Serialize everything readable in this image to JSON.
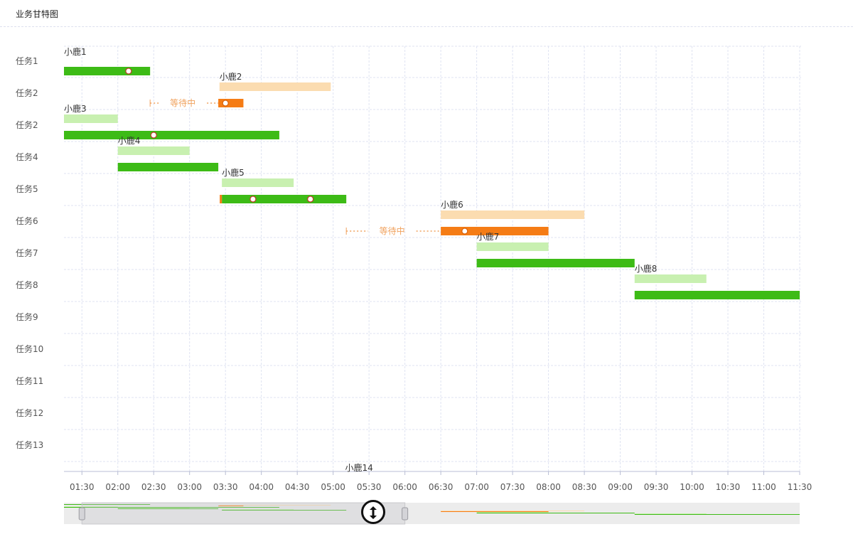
{
  "page": {
    "title": "业务甘特图"
  },
  "chart_data": {
    "type": "gantt",
    "title": "业务甘特图",
    "x_ticks": [
      "01:30",
      "02:00",
      "02:30",
      "03:00",
      "03:30",
      "04:00",
      "04:30",
      "05:00",
      "05:30",
      "06:00",
      "06:30",
      "07:00",
      "07:30",
      "08:00",
      "08:30",
      "09:00",
      "09:30",
      "10:00",
      "10:30",
      "11:00",
      "11:30"
    ],
    "x_range": [
      "01:15",
      "11:30"
    ],
    "rows": [
      "任务1",
      "任务2",
      "任务2",
      "任务4",
      "任务5",
      "任务6",
      "任务7",
      "任务8",
      "任务9",
      "任务10",
      "任务11",
      "任务12",
      "任务13"
    ],
    "grid": true,
    "colors": {
      "done": "#3dbb16",
      "planned": "#c8f0b0",
      "late": "#f57c15",
      "late_planned": "#fbdcb0",
      "waiting": "#f0a25e",
      "grid": "#dfe3f2"
    },
    "tasks": [
      {
        "row": 0,
        "label": "小鹿1",
        "actual": [
          "01:15",
          "02:27"
        ],
        "state": "done",
        "markers": [
          "02:09"
        ]
      },
      {
        "row": 1,
        "label": "小鹿2",
        "plan": [
          "03:25",
          "04:58"
        ],
        "actual": [
          "03:24",
          "03:45"
        ],
        "state": "late",
        "waiting": [
          "02:27",
          "03:24"
        ],
        "waiting_label": "等待中",
        "markers": [
          "03:30"
        ]
      },
      {
        "row": 2,
        "label": "小鹿3",
        "plan": [
          "01:15",
          "02:00"
        ],
        "actual": [
          "01:15",
          "04:15"
        ],
        "state": "done",
        "markers": [
          "02:30"
        ]
      },
      {
        "row": 3,
        "label": "小鹿4",
        "plan": [
          "02:00",
          "03:00"
        ],
        "actual": [
          "02:00",
          "03:24"
        ],
        "state": "done",
        "markers": []
      },
      {
        "row": 4,
        "label": "小鹿5",
        "plan": [
          "03:27",
          "04:27"
        ],
        "actual": [
          "03:27",
          "05:11"
        ],
        "state": "done",
        "markers": [
          "03:53",
          "04:41"
        ],
        "start_accent": true
      },
      {
        "row": 5,
        "label": "小鹿6",
        "plan": [
          "06:30",
          "08:30"
        ],
        "actual": [
          "06:30",
          "08:00"
        ],
        "state": "late",
        "waiting": [
          "05:11",
          "06:30"
        ],
        "waiting_label": "等待中",
        "markers": [
          "06:50"
        ]
      },
      {
        "row": 6,
        "label": "小鹿7",
        "plan": [
          "07:00",
          "08:00"
        ],
        "actual": [
          "07:00",
          "09:12"
        ],
        "state": "done",
        "markers": []
      },
      {
        "row": 7,
        "label": "小鹿8",
        "plan": [
          "09:12",
          "10:12"
        ],
        "actual": [
          "09:12",
          "11:30"
        ],
        "state": "done",
        "markers": []
      },
      {
        "row": 13,
        "label": "小鹿14"
      }
    ],
    "zoom_window": [
      "01:30",
      "06:00"
    ]
  }
}
